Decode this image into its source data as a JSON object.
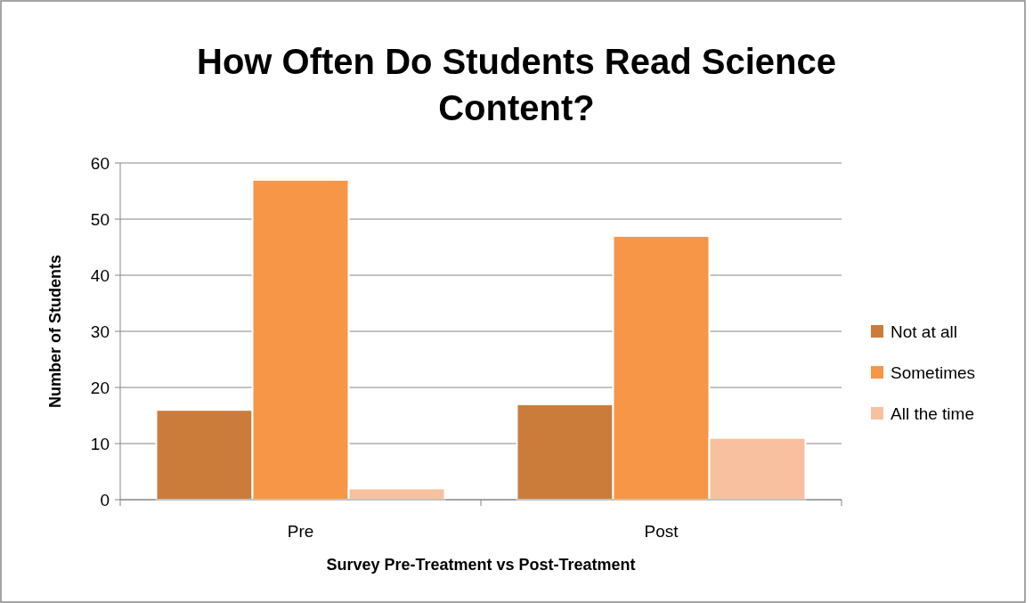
{
  "chart_data": {
    "type": "bar",
    "title": "How Often Do Students Read Science Content?",
    "xlabel": "Survey Pre-Treatment vs Post-Treatment",
    "ylabel": "Number of Students",
    "categories": [
      "Pre",
      "Post"
    ],
    "series": [
      {
        "name": "Not at all",
        "color": "#cb7c3b",
        "values": [
          16,
          17
        ]
      },
      {
        "name": "Sometimes",
        "color": "#f79646",
        "values": [
          57,
          47
        ]
      },
      {
        "name": "All the time",
        "color": "#f9c0a0",
        "values": [
          2,
          11
        ]
      }
    ],
    "ylim": [
      0,
      60
    ],
    "yticks": [
      0,
      10,
      20,
      30,
      40,
      50,
      60
    ],
    "grid": "y",
    "legend": "right"
  }
}
